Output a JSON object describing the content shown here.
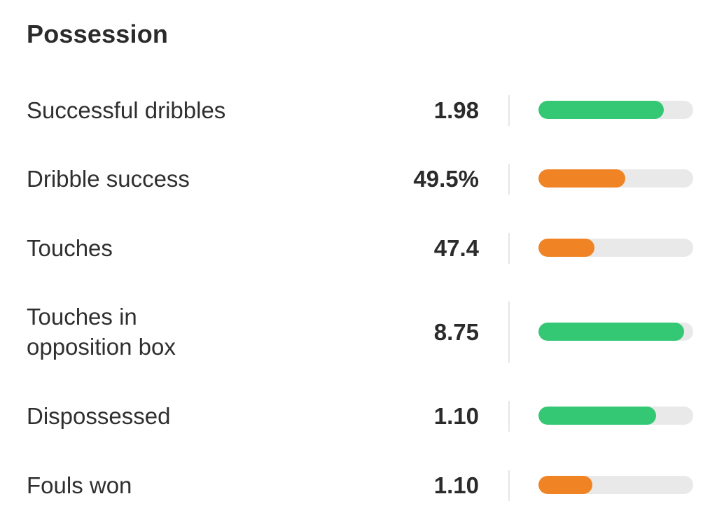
{
  "section": {
    "title": "Possession"
  },
  "colors": {
    "good": "#34c874",
    "average": "#f08324",
    "track": "#e9e9e9"
  },
  "stats": [
    {
      "label": "Successful dribbles",
      "value": "1.98",
      "level": 0.81,
      "rating": "good"
    },
    {
      "label": "Dribble success",
      "value": "49.5%",
      "level": 0.56,
      "rating": "average"
    },
    {
      "label": "Touches",
      "value": "47.4",
      "level": 0.36,
      "rating": "average"
    },
    {
      "label": "Touches in\nopposition box",
      "value": "8.75",
      "level": 0.94,
      "rating": "good"
    },
    {
      "label": "Dispossessed",
      "value": "1.10",
      "level": 0.76,
      "rating": "good"
    },
    {
      "label": "Fouls won",
      "value": "1.10",
      "level": 0.35,
      "rating": "average"
    }
  ]
}
